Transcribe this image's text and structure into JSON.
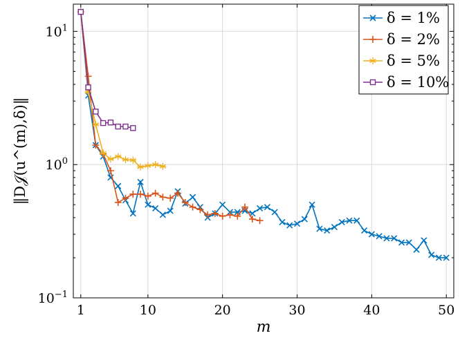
{
  "chart_data": {
    "type": "line",
    "title": "",
    "xlabel": "m",
    "ylabel": "‖D𝒥(u^(m),δ)‖",
    "xlim": [
      0,
      51
    ],
    "ylim": [
      0.1,
      16
    ],
    "yscale": "log",
    "grid": true,
    "legend_position": "top-right",
    "x_ticks": [
      1,
      10,
      20,
      30,
      40,
      50
    ],
    "x_tick_labels": [
      "1",
      "10",
      "20",
      "30",
      "40",
      "50"
    ],
    "y_ticks": [
      0.1,
      1,
      10
    ],
    "y_tick_labels": [
      {
        "base": "10",
        "exp": "−1"
      },
      {
        "base": "10",
        "exp": "0"
      },
      {
        "base": "10",
        "exp": "1"
      }
    ],
    "series": [
      {
        "name": "δ = 1%",
        "color": "#0072BD",
        "marker": "x",
        "x": [
          1,
          2,
          3,
          4,
          5,
          6,
          7,
          8,
          9,
          10,
          11,
          12,
          13,
          14,
          15,
          16,
          17,
          18,
          19,
          20,
          21,
          22,
          23,
          24,
          25,
          26,
          27,
          28,
          29,
          30,
          31,
          32,
          33,
          34,
          35,
          36,
          37,
          38,
          39,
          40,
          41,
          42,
          43,
          44,
          45,
          46,
          47,
          48,
          49,
          50
        ],
        "y": [
          14.0,
          3.3,
          1.4,
          1.15,
          0.8,
          0.69,
          0.54,
          0.43,
          0.74,
          0.5,
          0.47,
          0.42,
          0.45,
          0.63,
          0.51,
          0.57,
          0.48,
          0.4,
          0.43,
          0.5,
          0.44,
          0.44,
          0.45,
          0.43,
          0.47,
          0.48,
          0.44,
          0.37,
          0.35,
          0.36,
          0.39,
          0.5,
          0.33,
          0.32,
          0.34,
          0.37,
          0.38,
          0.38,
          0.32,
          0.3,
          0.29,
          0.28,
          0.28,
          0.26,
          0.26,
          0.23,
          0.27,
          0.21,
          0.2,
          0.2
        ]
      },
      {
        "name": "δ = 2%",
        "color": "#D95319",
        "marker": "+",
        "x": [
          1,
          2,
          3,
          4,
          5,
          6,
          7,
          8,
          9,
          10,
          11,
          12,
          13,
          14,
          15,
          16,
          17,
          18,
          19,
          20,
          21,
          22,
          23,
          24,
          25
        ],
        "y": [
          14.0,
          4.6,
          1.4,
          1.2,
          0.9,
          0.52,
          0.56,
          0.6,
          0.6,
          0.58,
          0.61,
          0.57,
          0.56,
          0.61,
          0.52,
          0.48,
          0.46,
          0.42,
          0.43,
          0.41,
          0.42,
          0.41,
          0.48,
          0.39,
          0.38
        ]
      },
      {
        "name": "δ = 5%",
        "color": "#EDB120",
        "marker": "*",
        "x": [
          1,
          2,
          3,
          4,
          5,
          6,
          7,
          8,
          9,
          10,
          11,
          12
        ],
        "y": [
          14.0,
          3.5,
          2.0,
          1.22,
          1.1,
          1.15,
          1.09,
          1.08,
          0.96,
          0.98,
          1.0,
          0.97
        ]
      },
      {
        "name": "δ = 10%",
        "color": "#7E2F8E",
        "marker": "square",
        "x": [
          1,
          2,
          3,
          4,
          5,
          6,
          7,
          8
        ],
        "y": [
          14.0,
          3.8,
          2.5,
          2.05,
          2.07,
          1.93,
          1.93,
          1.88
        ]
      }
    ]
  }
}
